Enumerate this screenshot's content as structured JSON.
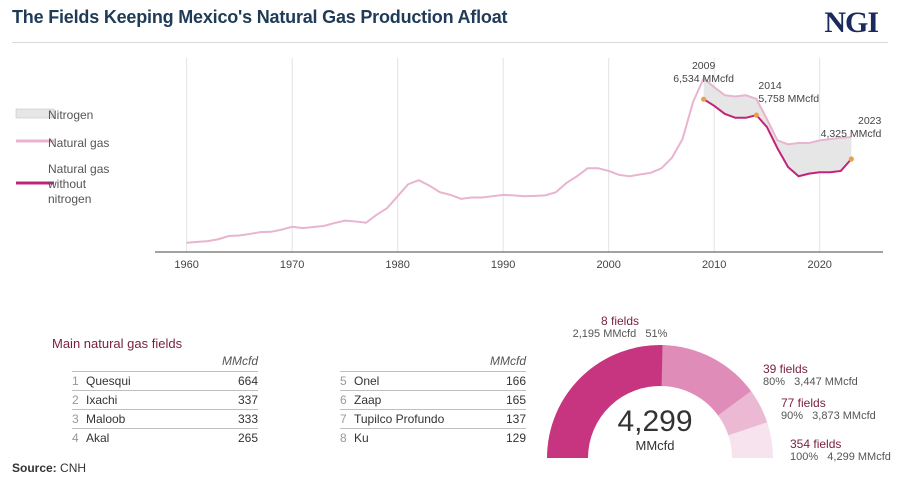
{
  "title": "The Fields Keeping Mexico's Natural Gas Production Afloat",
  "logo": "NGI",
  "source_label": "Source:",
  "source_value": "CNH",
  "colors": {
    "nitrogen_fill": "#e6e6e6",
    "natural_gas": "#e8b4cf",
    "without_nitrogen": "#c2237a",
    "marker": "#e8a04a",
    "donut": [
      "#c7347f",
      "#df8db8",
      "#ecb9d4",
      "#f6e3ee"
    ]
  },
  "chart_data": [
    {
      "type": "area",
      "title": "",
      "xlabel": "",
      "ylabel": "",
      "xlim": [
        1957,
        2026
      ],
      "ylim": [
        0,
        7300
      ],
      "x_ticks": [
        1960,
        1970,
        1980,
        1990,
        2000,
        2010,
        2020
      ],
      "grid": "vertical",
      "legend_position": "left",
      "legend": [
        "Nitrogen",
        "Natural gas",
        "Natural gas without nitrogen"
      ],
      "series": [
        {
          "name": "Natural gas",
          "x": [
            1960,
            1961,
            1962,
            1963,
            1964,
            1965,
            1966,
            1967,
            1968,
            1969,
            1970,
            1971,
            1972,
            1973,
            1974,
            1975,
            1976,
            1977,
            1978,
            1979,
            1980,
            1981,
            1982,
            1983,
            1984,
            1985,
            1986,
            1987,
            1988,
            1989,
            1990,
            1991,
            1992,
            1993,
            1994,
            1995,
            1996,
            1997,
            1998,
            1999,
            2000,
            2001,
            2002,
            2003,
            2004,
            2005,
            2006,
            2007,
            2008,
            2009,
            2010,
            2011,
            2012,
            2013,
            2014,
            2015,
            2016,
            2017,
            2018,
            2019,
            2020,
            2021,
            2022,
            2023
          ],
          "values": [
            350,
            380,
            410,
            480,
            600,
            620,
            680,
            750,
            760,
            840,
            950,
            900,
            940,
            980,
            1090,
            1180,
            1150,
            1100,
            1400,
            1650,
            2100,
            2550,
            2700,
            2500,
            2250,
            2150,
            2000,
            2050,
            2050,
            2100,
            2150,
            2130,
            2100,
            2110,
            2130,
            2250,
            2600,
            2850,
            3150,
            3150,
            3050,
            2900,
            2850,
            2920,
            2980,
            3150,
            3550,
            4250,
            5650,
            6534,
            6200,
            5900,
            5850,
            5900,
            5758,
            5000,
            4200,
            4050,
            4100,
            4100,
            4200,
            4250,
            4300,
            4325
          ]
        },
        {
          "name": "Natural gas without nitrogen",
          "x": [
            2009,
            2010,
            2011,
            2012,
            2013,
            2014,
            2015,
            2016,
            2017,
            2018,
            2019,
            2020,
            2021,
            2022,
            2023
          ],
          "values": [
            5750,
            5500,
            5200,
            5050,
            5050,
            5150,
            4700,
            3900,
            3200,
            2850,
            2950,
            3000,
            3000,
            3050,
            3500
          ]
        }
      ],
      "annotations": [
        {
          "year": "2009",
          "value": "6,534 MMcfd"
        },
        {
          "year": "2014",
          "value": "5,758 MMcfd"
        },
        {
          "year": "2023",
          "value": "4,325 MMcfd"
        }
      ]
    },
    {
      "type": "table",
      "title": "Main natural gas fields",
      "unit_header": "MMcfd",
      "rows": [
        {
          "rank": "1",
          "name": "Quesqui",
          "value": 664
        },
        {
          "rank": "2",
          "name": "Ixachi",
          "value": 337
        },
        {
          "rank": "3",
          "name": "Maloob",
          "value": 333
        },
        {
          "rank": "4",
          "name": "Akal",
          "value": 265
        },
        {
          "rank": "5",
          "name": "Onel",
          "value": 166
        },
        {
          "rank": "6",
          "name": "Zaap",
          "value": 165
        },
        {
          "rank": "7",
          "name": "Tupilco Profundo",
          "value": 137
        },
        {
          "rank": "8",
          "name": "Ku",
          "value": 129
        }
      ]
    },
    {
      "type": "pie",
      "center_value": "4,299",
      "center_unit": "MMcfd",
      "segments": [
        {
          "label": "8 fields",
          "pct": "51%",
          "cumulative": "2,195 MMcfd",
          "value": 2195
        },
        {
          "label": "39 fields",
          "pct": "80%",
          "cumulative": "3,447 MMcfd",
          "value": 1252
        },
        {
          "label": "77 fields",
          "pct": "90%",
          "cumulative": "3,873 MMcfd",
          "value": 426
        },
        {
          "label": "354 fields",
          "pct": "100%",
          "cumulative": "4,299 MMcfd",
          "value": 426
        }
      ]
    }
  ]
}
